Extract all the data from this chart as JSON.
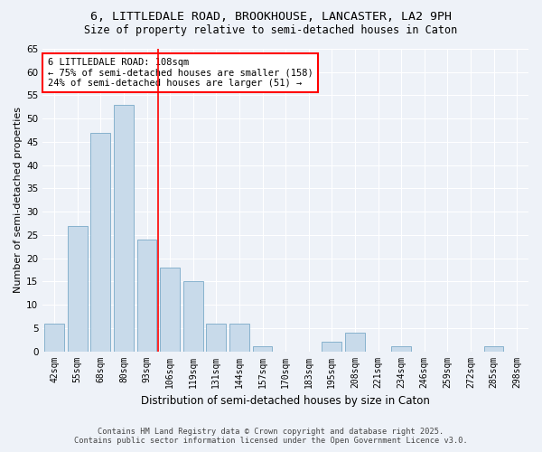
{
  "title1": "6, LITTLEDALE ROAD, BROOKHOUSE, LANCASTER, LA2 9PH",
  "title2": "Size of property relative to semi-detached houses in Caton",
  "xlabel": "Distribution of semi-detached houses by size in Caton",
  "ylabel": "Number of semi-detached properties",
  "categories": [
    "42sqm",
    "55sqm",
    "68sqm",
    "80sqm",
    "93sqm",
    "106sqm",
    "119sqm",
    "131sqm",
    "144sqm",
    "157sqm",
    "170sqm",
    "183sqm",
    "195sqm",
    "208sqm",
    "221sqm",
    "234sqm",
    "246sqm",
    "259sqm",
    "272sqm",
    "285sqm",
    "298sqm"
  ],
  "values": [
    6,
    27,
    47,
    53,
    24,
    18,
    15,
    6,
    6,
    1,
    0,
    0,
    2,
    4,
    0,
    1,
    0,
    0,
    0,
    1,
    0
  ],
  "bar_color": "#c8daea",
  "bar_edge_color": "#7aaac8",
  "vline_index": 5,
  "property_label": "6 LITTLEDALE ROAD: 108sqm",
  "annotation_line1": "← 75% of semi-detached houses are smaller (158)",
  "annotation_line2": "24% of semi-detached houses are larger (51) →",
  "ylim": [
    0,
    65
  ],
  "yticks": [
    0,
    5,
    10,
    15,
    20,
    25,
    30,
    35,
    40,
    45,
    50,
    55,
    60,
    65
  ],
  "footer1": "Contains HM Land Registry data © Crown copyright and database right 2025.",
  "footer2": "Contains public sector information licensed under the Open Government Licence v3.0.",
  "background_color": "#eef2f8",
  "grid_color": "#ffffff"
}
